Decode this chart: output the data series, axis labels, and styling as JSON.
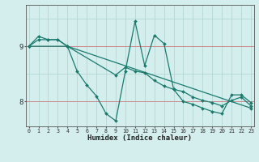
{
  "xlabel": "Humidex (Indice chaleur)",
  "ylabel": "",
  "bg_color": "#d4eeed",
  "grid_color": "#aed4d0",
  "line_color": "#1a7a6e",
  "red_line_color": "#cc8888",
  "x_ticks": [
    0,
    1,
    2,
    3,
    4,
    5,
    6,
    7,
    8,
    9,
    10,
    11,
    12,
    13,
    14,
    15,
    16,
    17,
    18,
    19,
    20,
    21,
    22,
    23
  ],
  "x_tick_labels": [
    "0",
    "1",
    "2",
    "3",
    "4",
    "5",
    "6",
    "7",
    "8",
    "9",
    "10",
    "11",
    "12",
    "13",
    "14",
    "15",
    "16",
    "17",
    "18",
    "19",
    "20",
    "21",
    "22",
    "23"
  ],
  "y_ticks": [
    8,
    9
  ],
  "ylim": [
    7.55,
    9.75
  ],
  "xlim": [
    -0.3,
    23.3
  ],
  "series": [
    {
      "x": [
        0,
        1,
        2,
        3,
        4,
        5,
        6,
        7,
        8,
        9,
        10,
        11,
        12,
        13,
        14,
        15,
        16,
        17,
        18,
        19,
        20,
        21,
        22,
        23
      ],
      "y": [
        9.0,
        9.18,
        9.12,
        9.12,
        9.0,
        8.55,
        8.3,
        8.1,
        7.78,
        7.65,
        8.55,
        9.45,
        8.65,
        9.2,
        9.05,
        8.22,
        8.0,
        7.95,
        7.88,
        7.82,
        7.78,
        8.12,
        8.12,
        7.98
      ]
    },
    {
      "x": [
        0,
        1,
        2,
        3,
        4,
        23
      ],
      "y": [
        9.0,
        9.12,
        9.12,
        9.12,
        9.0,
        7.88
      ]
    },
    {
      "x": [
        0,
        4,
        9,
        10,
        11,
        12,
        13,
        14,
        15,
        16,
        17,
        18,
        19,
        20,
        21,
        22,
        23
      ],
      "y": [
        9.0,
        9.0,
        8.48,
        8.62,
        8.55,
        8.52,
        8.38,
        8.28,
        8.22,
        8.18,
        8.08,
        8.02,
        7.98,
        7.92,
        8.02,
        8.08,
        7.92
      ]
    }
  ]
}
